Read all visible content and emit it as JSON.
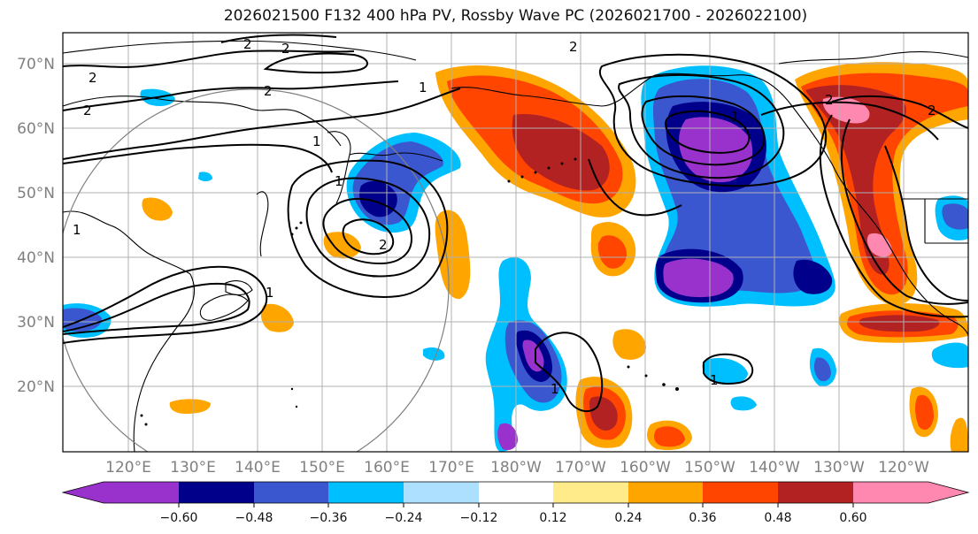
{
  "title": "2026021500 F132 400 hPa PV, Rossby Wave PC (2026021700 - 2026022100)",
  "colors": {
    "neg060": "#9932CC",
    "neg048": "#00008B",
    "neg036": "#3A57CF",
    "neg024": "#00BFFF",
    "neg012": "#ADDFFF",
    "zero": "#FFFFFF",
    "pos012": "#FFEB8A",
    "pos024": "#FFA500",
    "pos036": "#FF4500",
    "pos048": "#B22222",
    "pos060": "#FF88B0",
    "grid": "#B0B0B0",
    "land": "#000000"
  },
  "lat_labels": [
    "70°N",
    "60°N",
    "50°N",
    "40°N",
    "30°N",
    "20°N"
  ],
  "lon_labels": [
    "120°E",
    "130°E",
    "140°E",
    "150°E",
    "160°E",
    "170°E",
    "180°W",
    "170°W",
    "160°W",
    "150°W",
    "140°W",
    "130°W",
    "120°W"
  ],
  "colorbar": {
    "ticks": [
      "−0.60",
      "−0.48",
      "−0.36",
      "−0.24",
      "−0.12",
      "0.12",
      "0.24",
      "0.36",
      "0.48",
      "0.60"
    ]
  },
  "contour_labels": [
    "2",
    "2",
    "2",
    "2",
    "2",
    "1",
    "1",
    "1",
    "2",
    "1",
    "1",
    "2",
    "2",
    "1",
    "1",
    "2",
    "1"
  ]
}
